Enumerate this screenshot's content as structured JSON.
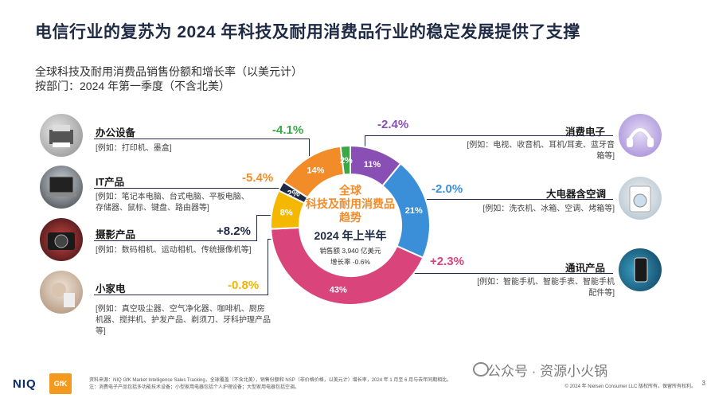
{
  "slide": {
    "title": "电信行业的复苏为 2024 年科技及耐用消费品行业的稳定发展提供了支撑",
    "subtitle1": "全球科技及耐用消费品销售份额和增长率（以美元计）",
    "subtitle2": "按部门：2024 年第一季度（不含北美）"
  },
  "center": {
    "line1": "全球",
    "line2": "科技及耐用消费品",
    "line3": "趋势",
    "line4": "2024 年上半年",
    "sales": "销售额 3,940 亿美元",
    "growth": "增长率 -0.6%"
  },
  "segments": [
    {
      "name": "办公设备",
      "growth": "-4.1%",
      "examples": "[例如：打印机、墨盒]",
      "growth_color": "#3aa845",
      "photo_icon": "printer-photo"
    },
    {
      "name": "IT产品",
      "growth": "-5.4%",
      "examples": "[例如：笔记本电脑、台式电脑、平板电脑、存储器、鼠标、键盘、路由器等]",
      "growth_color": "#f28c28",
      "photo_icon": "laptop-photo"
    },
    {
      "name": "摄影产品",
      "growth": "+8.2%",
      "examples": "[例如：数码相机、运动相机、传统摄像机等]",
      "growth_color": "#1f2a44",
      "photo_icon": "camera-photo"
    },
    {
      "name": "小家电",
      "growth": "-0.8%",
      "examples": "[例如：真空吸尘器、空气净化器、咖啡机、厨房机器、搅拌机、护发产品、剃须刀、牙科护理产品等]",
      "growth_color": "#f2b400",
      "photo_icon": "appliance-photo"
    },
    {
      "name": "消费电子",
      "growth": "-2.4%",
      "examples": "[例如：电视、收音机、耳机/耳麦、蓝牙音箱等]",
      "growth_color": "#8a4fb5",
      "photo_icon": "headphones-photo"
    },
    {
      "name": "大电器含空调",
      "growth": "-2.0%",
      "examples": "[例如：洗衣机、冰箱、空调、烤箱等]",
      "growth_color": "#3b8fd9",
      "photo_icon": "washer-photo"
    },
    {
      "name": "通讯产品",
      "growth": "+2.3%",
      "examples": "[例如：智能手机、智能手表、智能手机配件等]",
      "growth_color": "#d9447a",
      "photo_icon": "phone-photo"
    }
  ],
  "chart_data": {
    "type": "pie",
    "title": "",
    "categories": [
      "消费电子",
      "大电器含空调",
      "通讯产品",
      "小家电",
      "摄影产品",
      "IT产品",
      "办公设备"
    ],
    "values": [
      11,
      21,
      43,
      8,
      2,
      14,
      2
    ],
    "labels": [
      "11%",
      "21%",
      "43%",
      "8%",
      "2%",
      "14%",
      "2%"
    ],
    "colors": [
      "#8a4fb5",
      "#3b8fd9",
      "#d9447a",
      "#f5b800",
      "#1f2a44",
      "#f28c28",
      "#3aa845"
    ],
    "donut": true
  },
  "footer": {
    "source_line1": "资料来源：NIQ GfK Market Intelligence Sales Tracking，全球覆盖（不含北美），销售份额和 NSP（非价格价格，以美元计）增长率，2024 年 1 月至 6 月与去年同期相比。",
    "source_line2": "注：消费电子产品包括多功能技术设备；小型家用电器包括个人护理设备；大型家用电器包括空调。",
    "copyright": "© 2024 年 Nielsen Consumer LLC 版权所有。保留所有权利。",
    "page": "3",
    "logo_niq": "NIQ",
    "logo_gfk": "GfK",
    "watermark": "公众号 · 资源小火锅"
  }
}
